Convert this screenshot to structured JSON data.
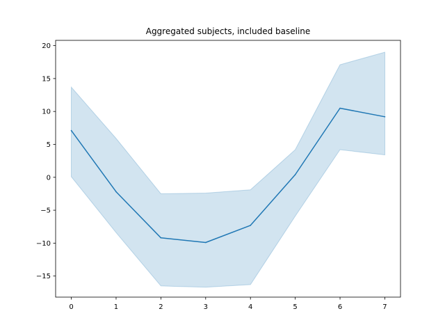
{
  "chart_data": {
    "type": "line",
    "title": "Aggregated subjects, included baseline",
    "xlabel": "",
    "ylabel": "",
    "x": [
      0,
      1,
      2,
      3,
      4,
      5,
      6,
      7
    ],
    "xticks": [
      "0",
      "1",
      "2",
      "3",
      "4",
      "5",
      "6",
      "7"
    ],
    "yticks": [
      "20",
      "15",
      "10",
      "5",
      "0",
      "−5",
      "−10",
      "−15"
    ],
    "ytick_values": [
      20,
      15,
      10,
      5,
      0,
      -5,
      -10,
      -15
    ],
    "xlim": [
      -0.35,
      7.35
    ],
    "ylim": [
      -18.2,
      20.8
    ],
    "grid": false,
    "legend": "none",
    "series": [
      {
        "values": [
          7.1,
          -2.2,
          -9.2,
          -9.9,
          -7.3,
          0.4,
          10.5,
          9.2
        ],
        "upper": [
          13.7,
          5.9,
          -2.5,
          -2.4,
          -1.9,
          4.2,
          17.1,
          19.0
        ],
        "lower": [
          0.1,
          -8.4,
          -16.5,
          -16.7,
          -16.3,
          -5.9,
          4.2,
          3.4
        ],
        "color": "#1f77b4",
        "band_color": "#1f77b4",
        "band_opacity": 0.2
      }
    ]
  }
}
